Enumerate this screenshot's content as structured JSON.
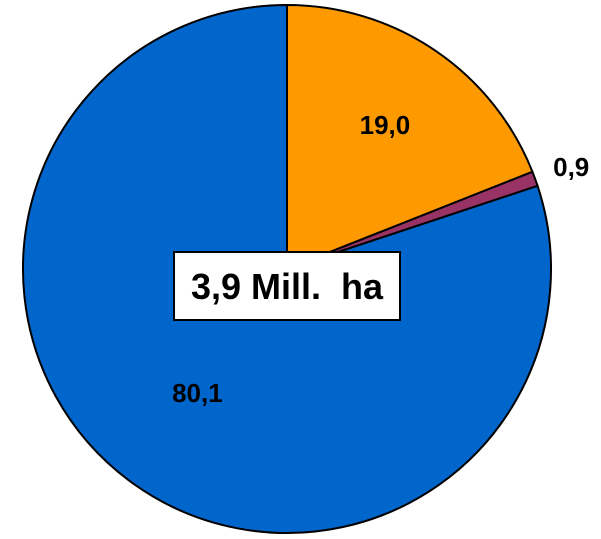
{
  "chart_data": {
    "type": "pie",
    "categories": [
      "",
      "",
      ""
    ],
    "values": [
      19.0,
      0.9,
      80.1
    ],
    "value_labels": [
      "19,0",
      "0,9",
      "80,1"
    ],
    "colors": [
      "#FF9900",
      "#993366",
      "#0066CC"
    ],
    "start_angle": "12 o'clock",
    "direction": "clockwise",
    "center_label": "3,9 Mill.  ha",
    "title": "",
    "legend": "none"
  }
}
